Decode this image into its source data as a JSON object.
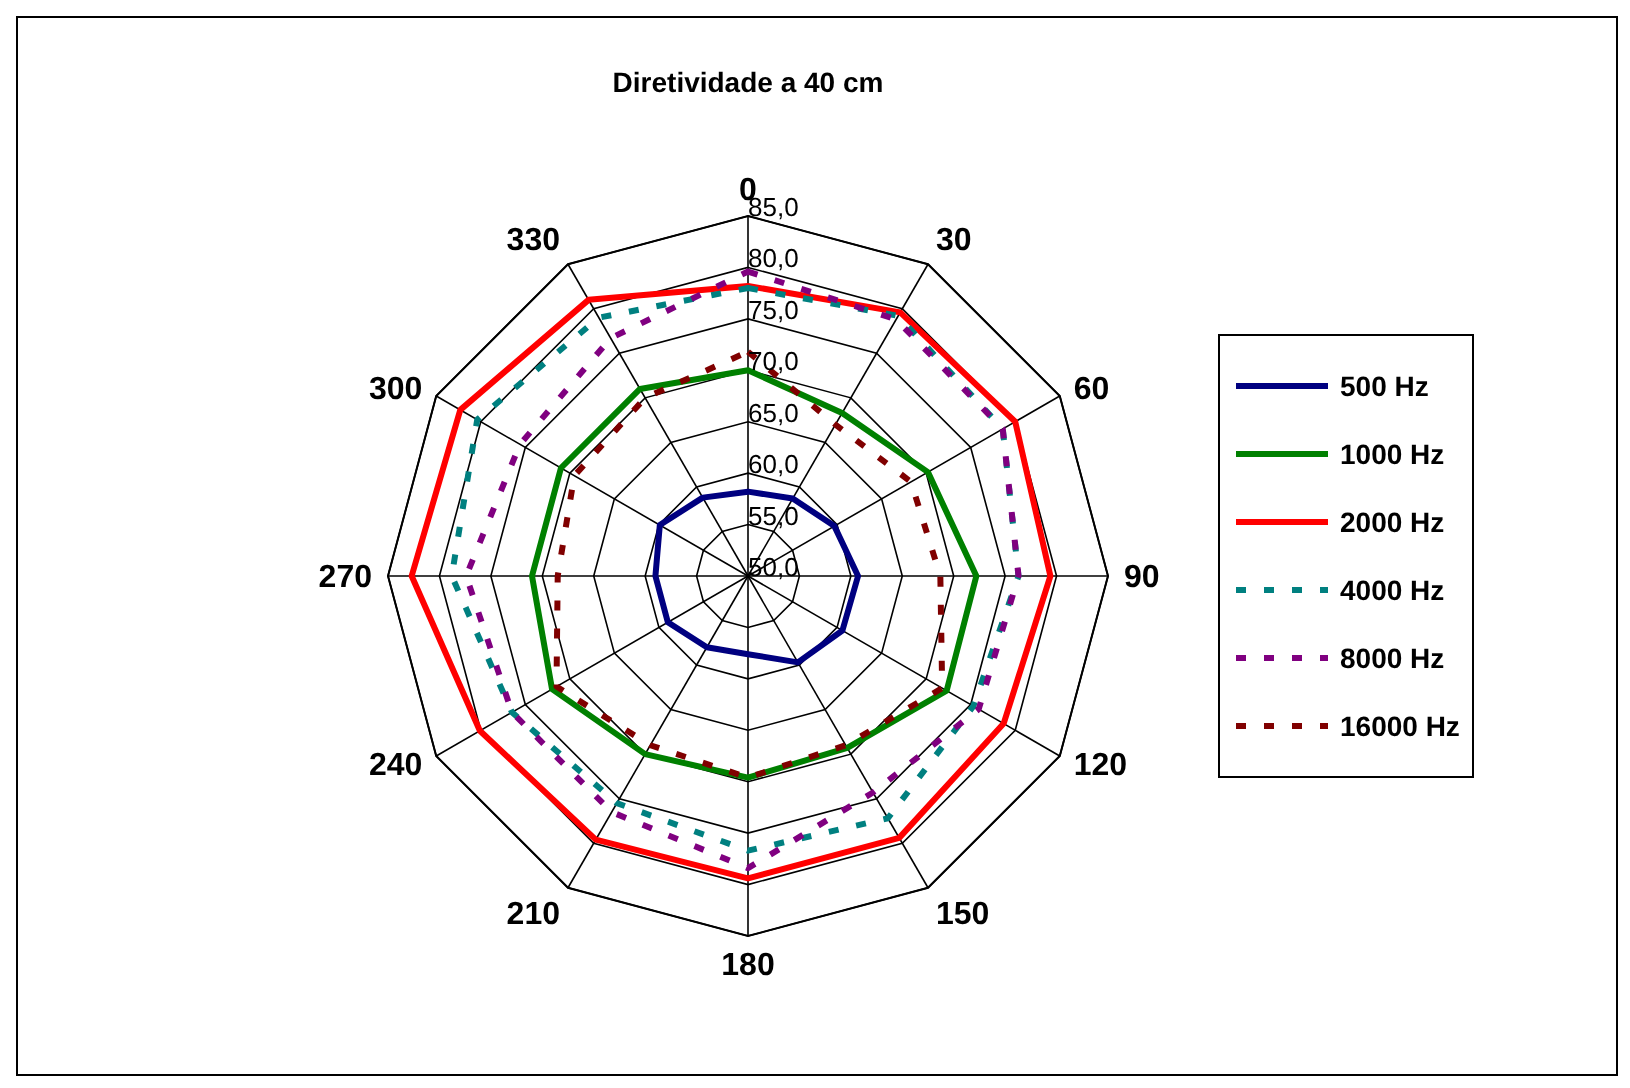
{
  "chart_data": {
    "type": "radar",
    "title": "Diretividade a 40 cm",
    "categories": [
      "0",
      "30",
      "60",
      "90",
      "120",
      "150",
      "180",
      "210",
      "240",
      "270",
      "300",
      "330"
    ],
    "series": [
      {
        "name": "500 Hz",
        "color": "#000080",
        "line_style": "solid",
        "values": [
          58.2,
          58.7,
          59.7,
          60.7,
          60.6,
          59.7,
          57.6,
          58.0,
          59.0,
          59.0,
          59.9,
          58.8
        ]
      },
      {
        "name": "1000 Hz",
        "color": "#008000",
        "line_style": "solid",
        "values": [
          70.0,
          68.3,
          70.2,
          72.2,
          72.3,
          69.3,
          69.6,
          70.0,
          72.0,
          71.0,
          71.0,
          71.0
        ]
      },
      {
        "name": "2000 Hz",
        "color": "#ff0000",
        "line_style": "solid",
        "values": [
          78.2,
          79.6,
          80.0,
          79.4,
          78.7,
          79.4,
          79.4,
          79.6,
          80.1,
          82.7,
          82.3,
          81.0
        ]
      },
      {
        "name": "4000 Hz",
        "color": "#008080",
        "line_style": "dashed",
        "values": [
          78.0,
          79.2,
          78.6,
          76.3,
          75.3,
          77.2,
          76.7,
          75.5,
          76.5,
          78.8,
          80.4,
          79.0
        ]
      },
      {
        "name": "8000 Hz",
        "color": "#800080",
        "line_style": "dashed",
        "values": [
          79.6,
          78.8,
          78.6,
          76.3,
          75.9,
          74.3,
          78.4,
          76.5,
          76.5,
          77.4,
          75.6,
          76.7
        ]
      },
      {
        "name": "16000 Hz",
        "color": "#800000",
        "line_style": "dashed",
        "values": [
          71.8,
          67.0,
          68.3,
          68.7,
          71.8,
          69.0,
          69.6,
          69.0,
          71.5,
          68.5,
          69.5,
          70.0
        ]
      }
    ],
    "ylim": [
      50,
      85
    ],
    "yticks": [
      {
        "value": 50,
        "label": "50,0"
      },
      {
        "value": 55,
        "label": "55,0"
      },
      {
        "value": 60,
        "label": "60,0"
      },
      {
        "value": 65,
        "label": "65,0"
      },
      {
        "value": 70,
        "label": "70,0"
      },
      {
        "value": 75,
        "label": "75,0"
      },
      {
        "value": 80,
        "label": "80,0"
      },
      {
        "value": 85,
        "label": "85,0"
      }
    ],
    "grid": true,
    "legend": "right",
    "marker": "none"
  }
}
